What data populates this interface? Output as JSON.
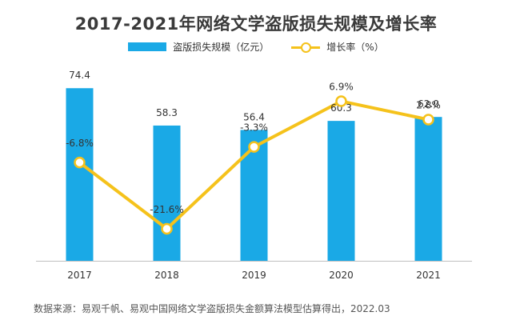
{
  "chart_data": {
    "type": "bar+line",
    "title": "2017-2021年网络文学盗版损失规模及增长率",
    "categories": [
      "2017",
      "2018",
      "2019",
      "2020",
      "2021"
    ],
    "series": [
      {
        "name": "盗版损失规模（亿元）",
        "type": "bar",
        "color": "#1aa9e6",
        "values": [
          74.4,
          58.3,
          56.4,
          60.3,
          62.0
        ],
        "labels": [
          "74.4",
          "58.3",
          "56.4",
          "60.3",
          "62.0"
        ]
      },
      {
        "name": "增长率（%）",
        "type": "line",
        "color": "#f5c21b",
        "values": [
          -6.8,
          -21.6,
          -3.3,
          6.9,
          2.8
        ],
        "labels": [
          "-6.8%",
          "-21.6%",
          "-3.3%",
          "6.9%",
          "2.8%"
        ]
      }
    ],
    "bar_axis_range": [
      0,
      80
    ],
    "line_axis_range": [
      -25,
      12
    ],
    "grid": false,
    "legend_position": "top-center"
  },
  "source_note": "数据来源：易观千帆、易观中国网络文学盗版损失金额算法模型估算得出，2022.03"
}
